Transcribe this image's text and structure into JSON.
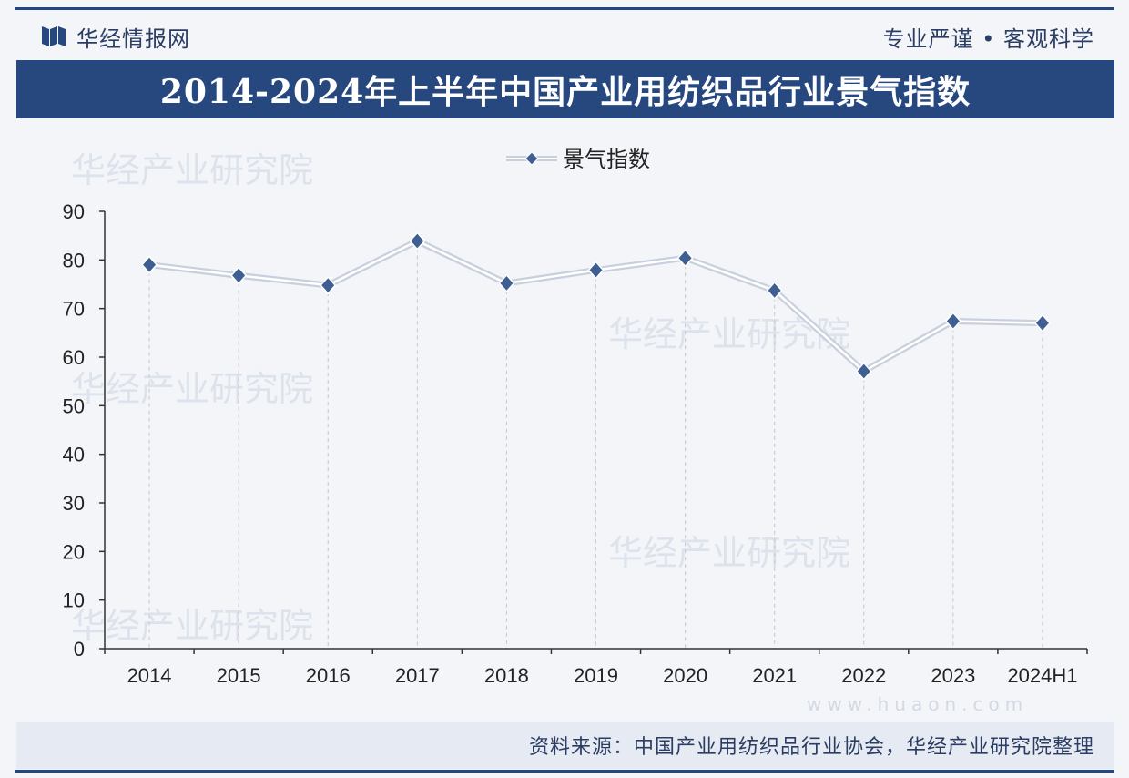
{
  "header": {
    "brand_name": "华经情报网",
    "slogan": "专业严谨 • 客观科学",
    "title": "2014-2024年上半年中国产业用纺织品行业景气指数"
  },
  "footer": {
    "source": "资料来源：中国产业用纺织品行业协会，华经产业研究院整理"
  },
  "watermark": {
    "text": "华经产业研究院",
    "url": "www.huaon.com"
  },
  "colors": {
    "brand": "#27487f",
    "line": "#c9d0dd",
    "marker": "#3f5f93",
    "axis": "#333333",
    "gridline": "#c8c8c8"
  },
  "chart_data": {
    "type": "line",
    "title": "2014-2024年上半年中国产业用纺织品行业景气指数",
    "xlabel": "",
    "ylabel": "",
    "categories": [
      "2014",
      "2015",
      "2016",
      "2017",
      "2018",
      "2019",
      "2020",
      "2021",
      "2022",
      "2023",
      "2024H1"
    ],
    "series": [
      {
        "name": "景气指数",
        "values": [
          79.0,
          76.8,
          74.8,
          83.9,
          75.2,
          77.9,
          80.4,
          73.7,
          57.1,
          67.4,
          67.0
        ]
      }
    ],
    "ylim": [
      0,
      90
    ],
    "yticks": [
      0,
      10,
      20,
      30,
      40,
      50,
      60,
      70,
      80,
      90
    ],
    "legend_position": "top-center",
    "grid": false,
    "vertical_drop_lines": true
  }
}
